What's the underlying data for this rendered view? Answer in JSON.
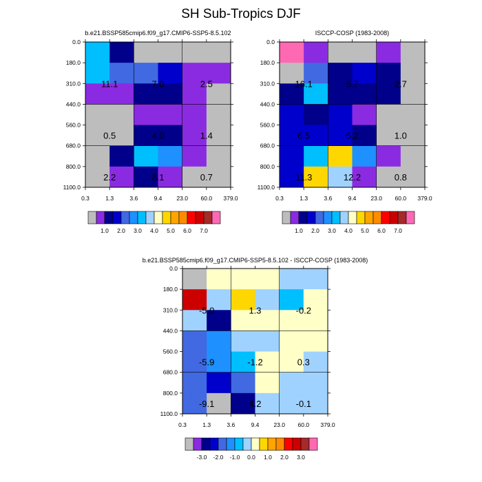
{
  "title": "SH Sub-Tropics DJF",
  "colors": {
    "missing": "#bdbdbd",
    "grid": "#000000"
  },
  "chart_data": [
    {
      "type": "heatmap",
      "title": "b.e21.BSSP585cmip6.f09_g17.CMIP6-SSP5-8.5.102",
      "x_tick_labels": [
        "0.3",
        "1.3",
        "3.6",
        "9.4",
        "23.0",
        "60.0",
        "379.0"
      ],
      "y_tick_labels": [
        "0.0",
        "180.0",
        "310.0",
        "440.0",
        "560.0",
        "680.0",
        "800.0",
        "1100.0"
      ],
      "cells": [
        [
          "#00bfff",
          "#00008b",
          "#bdbdbd",
          "#bdbdbd",
          "#bdbdbd",
          "#bdbdbd"
        ],
        [
          "#00bfff",
          "#4169e1",
          "#4169e1",
          "#0000cd",
          "#8a2be2",
          "#8a2be2"
        ],
        [
          "#8a2be2",
          "#8a2be2",
          "#00008b",
          "#00008b",
          "#8a2be2",
          "#bdbdbd"
        ],
        [
          "#bdbdbd",
          "#bdbdbd",
          "#8a2be2",
          "#8a2be2",
          "#8a2be2",
          "#bdbdbd"
        ],
        [
          "#bdbdbd",
          "#bdbdbd",
          "#00008b",
          "#00008b",
          "#8a2be2",
          "#bdbdbd"
        ],
        [
          "#bdbdbd",
          "#00008b",
          "#00bfff",
          "#1e90ff",
          "#8a2be2",
          "#bdbdbd"
        ],
        [
          "#bdbdbd",
          "#8a2be2",
          "#00008b",
          "#8a2be2",
          "#bdbdbd",
          "#bdbdbd"
        ]
      ],
      "annotations": [
        {
          "col": 0,
          "row": 0,
          "value": "11.1"
        },
        {
          "col": 1,
          "row": 0,
          "value": "7.0"
        },
        {
          "col": 2,
          "row": 0,
          "value": "2.5"
        },
        {
          "col": 0,
          "row": 1,
          "value": "0.5"
        },
        {
          "col": 1,
          "row": 1,
          "value": "4.0"
        },
        {
          "col": 2,
          "row": 1,
          "value": "1.4"
        },
        {
          "col": 0,
          "row": 2,
          "value": "2.2"
        },
        {
          "col": 1,
          "row": 2,
          "value": "8.1"
        },
        {
          "col": 2,
          "row": 2,
          "value": "0.7"
        }
      ],
      "colorbar": {
        "colors": [
          "#bdbdbd",
          "#8a2be2",
          "#00008b",
          "#0000cd",
          "#4169e1",
          "#1e90ff",
          "#00bfff",
          "#a0d2ff",
          "#ffffc8",
          "#ffd700",
          "#ffa500",
          "#ff8c00",
          "#ff0000",
          "#cd0000",
          "#a52a2a",
          "#ff69b4"
        ],
        "labels": [
          "1.0",
          "2.0",
          "3.0",
          "4.0",
          "5.0",
          "6.0",
          "7.0"
        ],
        "label_after_box": [
          2,
          4,
          6,
          8,
          10,
          12,
          14
        ]
      }
    },
    {
      "type": "heatmap",
      "title": "ISCCP-COSP (1983-2008)",
      "x_tick_labels": [
        "0.3",
        "1.3",
        "3.6",
        "9.4",
        "23.0",
        "60.0",
        "379.0"
      ],
      "y_tick_labels": [
        "0.0",
        "180.0",
        "310.0",
        "440.0",
        "560.0",
        "680.0",
        "800.0",
        "1100.0"
      ],
      "cells": [
        [
          "#ff69b4",
          "#8a2be2",
          "#bdbdbd",
          "#bdbdbd",
          "#8a2be2",
          "#bdbdbd"
        ],
        [
          "#bdbdbd",
          "#4169e1",
          "#00008b",
          "#0000cd",
          "#00008b",
          "#bdbdbd"
        ],
        [
          "#00008b",
          "#00bfff",
          "#00008b",
          "#00008b",
          "#00008b",
          "#bdbdbd"
        ],
        [
          "#0000cd",
          "#00008b",
          "#0000cd",
          "#8a2be2",
          "#bdbdbd",
          "#bdbdbd"
        ],
        [
          "#0000cd",
          "#0000cd",
          "#0000cd",
          "#00008b",
          "#bdbdbd",
          "#bdbdbd"
        ],
        [
          "#0000cd",
          "#00bfff",
          "#ffd700",
          "#1e90ff",
          "#8a2be2",
          "#bdbdbd"
        ],
        [
          "#0000cd",
          "#ffd700",
          "#a0d2ff",
          "#8a2be2",
          "#bdbdbd",
          "#bdbdbd"
        ]
      ],
      "annotations": [
        {
          "col": 0,
          "row": 0,
          "value": "16.1"
        },
        {
          "col": 1,
          "row": 0,
          "value": "5.7"
        },
        {
          "col": 2,
          "row": 0,
          "value": "2.7"
        },
        {
          "col": 0,
          "row": 1,
          "value": "6.5"
        },
        {
          "col": 1,
          "row": 1,
          "value": "5.2"
        },
        {
          "col": 2,
          "row": 1,
          "value": "1.0"
        },
        {
          "col": 0,
          "row": 2,
          "value": "11.3"
        },
        {
          "col": 1,
          "row": 2,
          "value": "12.2"
        },
        {
          "col": 2,
          "row": 2,
          "value": "0.8"
        }
      ],
      "colorbar": {
        "colors": [
          "#bdbdbd",
          "#8a2be2",
          "#00008b",
          "#0000cd",
          "#4169e1",
          "#1e90ff",
          "#00bfff",
          "#a0d2ff",
          "#ffffc8",
          "#ffd700",
          "#ffa500",
          "#ff8c00",
          "#ff0000",
          "#cd0000",
          "#a52a2a",
          "#ff69b4"
        ],
        "labels": [
          "1.0",
          "2.0",
          "3.0",
          "4.0",
          "5.0",
          "6.0",
          "7.0"
        ],
        "label_after_box": [
          2,
          4,
          6,
          8,
          10,
          12,
          14
        ]
      }
    },
    {
      "type": "heatmap",
      "title": "b.e21.BSSP585cmip6.f09_g17.CMIP6-SSP5-8.5.102 - ISCCP-COSP (1983-2008)",
      "x_tick_labels": [
        "0.3",
        "1.3",
        "3.6",
        "9.4",
        "23.0",
        "60.0",
        "379.0"
      ],
      "y_tick_labels": [
        "0.0",
        "180.0",
        "310.0",
        "440.0",
        "560.0",
        "680.0",
        "800.0",
        "1100.0"
      ],
      "cells": [
        [
          "#bdbdbd",
          "#ffffc8",
          "#ffffc8",
          "#ffffc8",
          "#a0d2ff",
          "#a0d2ff"
        ],
        [
          "#cd0000",
          "#a0d2ff",
          "#ffd700",
          "#a0d2ff",
          "#00bfff",
          "#ffffc8"
        ],
        [
          "#a0d2ff",
          "#00008b",
          "#ffffc8",
          "#ffffc8",
          "#ffffc8",
          "#ffffc8"
        ],
        [
          "#4169e1",
          "#1e90ff",
          "#a0d2ff",
          "#a0d2ff",
          "#ffffc8",
          "#ffffc8"
        ],
        [
          "#4169e1",
          "#1e90ff",
          "#00bfff",
          "#ffffc8",
          "#ffffc8",
          "#a0d2ff"
        ],
        [
          "#4169e1",
          "#0000cd",
          "#4169e1",
          "#ffffc8",
          "#a0d2ff",
          "#a0d2ff"
        ],
        [
          "#4169e1",
          "#bdbdbd",
          "#00008b",
          "#a0d2ff",
          "#a0d2ff",
          "#a0d2ff"
        ]
      ],
      "annotations": [
        {
          "col": 0,
          "row": 0,
          "value": "-5.0"
        },
        {
          "col": 1,
          "row": 0,
          "value": "1.3"
        },
        {
          "col": 2,
          "row": 0,
          "value": "-0.2"
        },
        {
          "col": 0,
          "row": 1,
          "value": "-5.9"
        },
        {
          "col": 1,
          "row": 1,
          "value": "-1.2"
        },
        {
          "col": 2,
          "row": 1,
          "value": "0.3"
        },
        {
          "col": 0,
          "row": 2,
          "value": "-9.1"
        },
        {
          "col": 1,
          "row": 2,
          "value": "4.2"
        },
        {
          "col": 2,
          "row": 2,
          "value": "-0.1"
        }
      ],
      "colorbar": {
        "colors": [
          "#bdbdbd",
          "#8a2be2",
          "#00008b",
          "#0000cd",
          "#4169e1",
          "#1e90ff",
          "#00bfff",
          "#a0d2ff",
          "#ffffc8",
          "#ffd700",
          "#ffa500",
          "#ff8c00",
          "#ff0000",
          "#cd0000",
          "#a52a2a",
          "#ff69b4"
        ],
        "labels": [
          "-3.0",
          "-2.0",
          "-1.0",
          "0.0",
          "1.0",
          "2.0",
          "3.0"
        ],
        "label_after_box": [
          2,
          4,
          6,
          8,
          10,
          12,
          14
        ]
      }
    }
  ]
}
